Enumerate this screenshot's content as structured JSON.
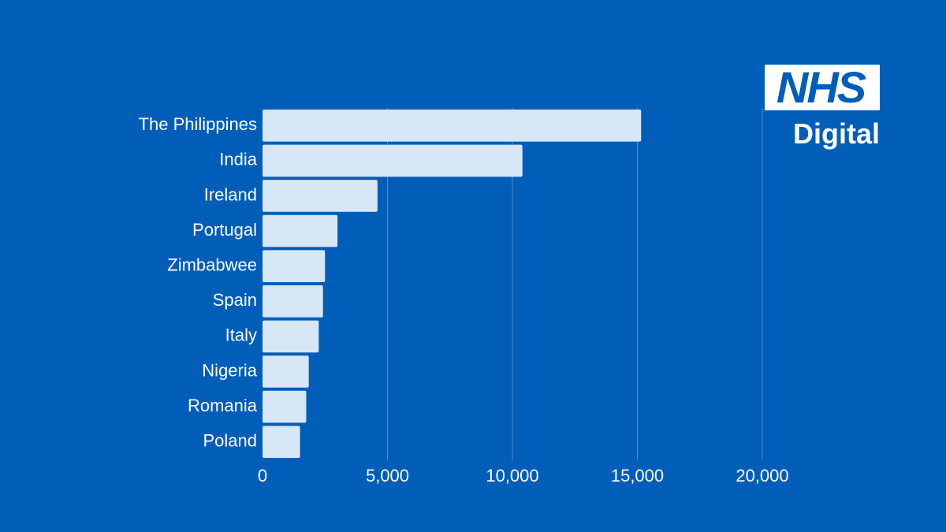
{
  "colors": {
    "background": "#005EB8",
    "bar": "#D8E7F6",
    "gridline": "#4A8FD3",
    "text": "#FFFFFF",
    "logo_text": "#005EB8"
  },
  "logo": {
    "mark": "NHS",
    "subtitle": "Digital"
  },
  "chart_data": {
    "type": "bar",
    "orientation": "horizontal",
    "title": "",
    "xlabel": "",
    "ylabel": "",
    "categories": [
      "The Philippines",
      "India",
      "Ireland",
      "Portugal",
      "Zimbabwee",
      "Spain",
      "Italy",
      "Nigeria",
      "Romania",
      "Poland"
    ],
    "values": [
      15150,
      10400,
      4600,
      3000,
      2500,
      2420,
      2250,
      1850,
      1750,
      1500
    ],
    "xlim": [
      0,
      20000
    ],
    "ticks": [
      0,
      5000,
      10000,
      15000,
      20000
    ],
    "tick_labels": [
      "0",
      "5,000",
      "10,000",
      "15,000",
      "20,000"
    ],
    "grid": true,
    "legend": "none"
  }
}
